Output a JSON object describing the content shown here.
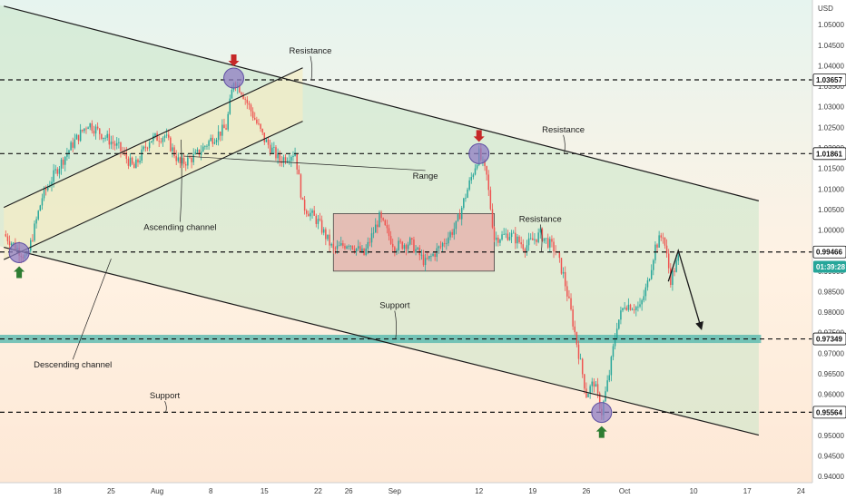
{
  "chart_data": {
    "type": "candlestick",
    "currency": "USD",
    "y_range": [
      0.9385,
      1.056
    ],
    "y_ticks": [
      0.94,
      0.945,
      0.95,
      0.955,
      0.96,
      0.965,
      0.97,
      0.975,
      0.98,
      0.985,
      0.99,
      0.995,
      1.0,
      1.005,
      1.01,
      1.015,
      1.02,
      1.025,
      1.03,
      1.035,
      1.04,
      1.045,
      1.05,
      1.055
    ],
    "y_tick_labels": [
      "0.94000",
      "0.94500",
      "0.95000",
      "0.95500",
      "0.96000",
      "0.96500",
      "0.97000",
      "0.97500",
      "0.98000",
      "0.98500",
      "0.99000",
      "0.99500",
      "1.00000",
      "1.00500",
      "1.01000",
      "1.01500",
      "1.02000",
      "1.02500",
      "1.03000",
      "1.03500",
      "1.04000",
      "1.04500",
      "1.05000",
      "1.05500"
    ],
    "x_range_days": [
      -20.5,
      85.5
    ],
    "x_ticks": [
      {
        "label": "18",
        "day": -13
      },
      {
        "label": "25",
        "day": -6
      },
      {
        "label": "Aug",
        "day": 0
      },
      {
        "label": "8",
        "day": 7
      },
      {
        "label": "15",
        "day": 14
      },
      {
        "label": "22",
        "day": 21
      },
      {
        "label": "26",
        "day": 25
      },
      {
        "label": "Sep",
        "day": 31
      },
      {
        "label": "12",
        "day": 42
      },
      {
        "label": "19",
        "day": 49
      },
      {
        "label": "26",
        "day": 56
      },
      {
        "label": "Oct",
        "day": 61
      },
      {
        "label": "10",
        "day": 70
      },
      {
        "label": "17",
        "day": 77
      },
      {
        "label": "24",
        "day": 84
      }
    ],
    "price_path": [
      [
        -20,
        0.999
      ],
      [
        -17,
        0.993
      ],
      [
        -15,
        1.008
      ],
      [
        -13,
        1.015
      ],
      [
        -11,
        1.021
      ],
      [
        -9,
        1.026
      ],
      [
        -7,
        1.023
      ],
      [
        -5,
        1.02
      ],
      [
        -3,
        1.015
      ],
      [
        -1,
        1.022
      ],
      [
        1,
        1.023
      ],
      [
        3,
        1.016
      ],
      [
        5,
        1.018
      ],
      [
        7,
        1.022
      ],
      [
        9,
        1.025
      ],
      [
        10,
        1.0365
      ],
      [
        11,
        1.034
      ],
      [
        12,
        1.03
      ],
      [
        14,
        1.022
      ],
      [
        16,
        1.017
      ],
      [
        18,
        1.019
      ],
      [
        19,
        1.006
      ],
      [
        21,
        1.002
      ],
      [
        23,
        0.995
      ],
      [
        25,
        0.997
      ],
      [
        27,
        0.994
      ],
      [
        29,
        1.003
      ],
      [
        31,
        0.996
      ],
      [
        33,
        0.997
      ],
      [
        35,
        0.992
      ],
      [
        37,
        0.996
      ],
      [
        39,
        1.001
      ],
      [
        40,
        1.007
      ],
      [
        42,
        1.0186
      ],
      [
        43,
        1.013
      ],
      [
        44,
        0.998
      ],
      [
        46,
        0.999
      ],
      [
        48,
        0.996
      ],
      [
        50,
        0.999
      ],
      [
        52,
        0.995
      ],
      [
        53,
        0.989
      ],
      [
        54,
        0.98
      ],
      [
        55,
        0.97
      ],
      [
        56,
        0.96
      ],
      [
        57,
        0.963
      ],
      [
        58,
        0.9556
      ],
      [
        59,
        0.965
      ],
      [
        60,
        0.977
      ],
      [
        61,
        0.982
      ],
      [
        63,
        0.981
      ],
      [
        64,
        0.987
      ],
      [
        65,
        0.996
      ],
      [
        66,
        0.999
      ],
      [
        67,
        0.988
      ],
      [
        68,
        0.993
      ]
    ],
    "levels": [
      {
        "price": 1.03657,
        "label": "1.03657"
      },
      {
        "price": 1.01861,
        "label": "1.01861"
      },
      {
        "price": 0.99466,
        "label": "0.99466"
      },
      {
        "price": 0.97349,
        "label": "0.97349"
      },
      {
        "price": 0.95564,
        "label": "0.95564"
      }
    ],
    "current_price": {
      "price": 0.99106,
      "label": "0.99106",
      "countdown": "01:39:28"
    },
    "support_zone": [
      0.9725,
      0.9745
    ],
    "range_box": {
      "day_start": 23,
      "day_end": 44,
      "price_low": 0.99,
      "price_high": 1.004
    },
    "descending_channel": {
      "upper": [
        [
          -20,
          1.0545
        ],
        [
          86,
          1.0035
        ]
      ],
      "lower": [
        [
          -20,
          0.9958
        ],
        [
          86,
          0.9466
        ]
      ]
    },
    "ascending_channel": {
      "upper": [
        [
          -20,
          1.0055
        ],
        [
          19,
          1.0395
        ]
      ],
      "lower": [
        [
          -20,
          0.9928
        ],
        [
          19,
          1.0265
        ]
      ]
    },
    "projection": [
      [
        68,
        0.995
      ],
      [
        71,
        0.976
      ]
    ],
    "pivots": [
      {
        "day": -18,
        "price": 0.9945,
        "type": "low"
      },
      {
        "day": 10,
        "price": 1.037,
        "type": "high"
      },
      {
        "day": 42,
        "price": 1.0186,
        "type": "high"
      },
      {
        "day": 58,
        "price": 0.9556,
        "type": "low"
      }
    ],
    "annotations": [
      {
        "text": "Resistance",
        "day": 20,
        "price": 1.043
      },
      {
        "text": "Resistance",
        "day": 53,
        "price": 1.0238
      },
      {
        "text": "Resistance",
        "day": 50,
        "price": 1.002
      },
      {
        "text": "Range",
        "day": 35,
        "price": 1.0125
      },
      {
        "text": "Ascending channel",
        "day": 3,
        "price": 1.0
      },
      {
        "text": "Support",
        "day": 31,
        "price": 0.981
      },
      {
        "text": "Descending channel",
        "day": -11,
        "price": 0.9665
      },
      {
        "text": "Support",
        "day": 1,
        "price": 0.959
      }
    ],
    "colors": {
      "up": "#26a69a",
      "down": "#ef5350",
      "channel_fill": "#c8e6c9",
      "range_fill": "#e8a0a0",
      "support_zone": "#4db6ac",
      "pivot_circle": "#8e7cc3",
      "arrow_down": "#c62828",
      "arrow_up": "#2e7d32",
      "price_label_bg": "#ffffff",
      "current_label_bg": "#26a69a"
    }
  }
}
